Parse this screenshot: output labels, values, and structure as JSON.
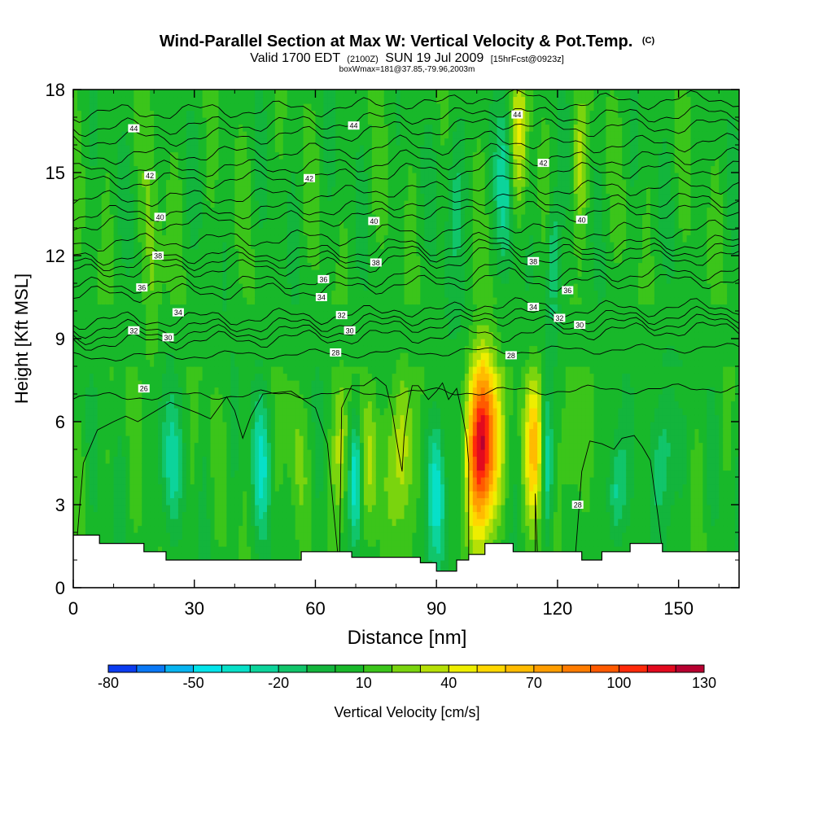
{
  "chart_data": {
    "type": "heatmap",
    "title": "Wind-Parallel Section at Max W: Vertical Velocity & Pot.Temp.",
    "title_mark": "(C)",
    "subtitle_parts": [
      "Valid 1700 EDT",
      "(2100Z)",
      "SUN 19 Jul 2009",
      "[15hrFcst@0923z]"
    ],
    "subtitle2": "boxWmax=181@37.85,-79.96,2003m",
    "xlabel": "Distance [nm]",
    "ylabel": "Height [Kft MSL]",
    "xlim": [
      0,
      165
    ],
    "ylim": [
      0,
      18
    ],
    "x_ticks": [
      0,
      30,
      60,
      90,
      120,
      150
    ],
    "y_ticks": [
      0,
      3,
      6,
      9,
      12,
      15,
      18
    ],
    "grid": false,
    "colorbar": {
      "label": "Vertical Velocity [cm/s]",
      "tick_labels": [
        "-80",
        "-50",
        "-20",
        "10",
        "40",
        "70",
        "100",
        "130"
      ],
      "min": -80,
      "max": 130,
      "step": 10,
      "colors": [
        "#0000d8",
        "#0b3cf0",
        "#0a78f5",
        "#07b4f0",
        "#03e4ea",
        "#07e0c8",
        "#0cd49b",
        "#11c56a",
        "#13b53c",
        "#18b82a",
        "#3bc51a",
        "#7ad40e",
        "#b6e006",
        "#eeee00",
        "#ffd700",
        "#ffbb00",
        "#ff9d00",
        "#ff7c00",
        "#ff5a00",
        "#ff2a0a",
        "#e20a1e",
        "#b70030"
      ]
    },
    "terrain_kft": [
      [
        0,
        1.9
      ],
      [
        6.5,
        1.6
      ],
      [
        17.5,
        1.3
      ],
      [
        23,
        1.0
      ],
      [
        56.5,
        1.3
      ],
      [
        62,
        1.3
      ],
      [
        69,
        1.1
      ],
      [
        75,
        1.1
      ],
      [
        79.5,
        1.1
      ],
      [
        84,
        1.1
      ],
      [
        86,
        0.9
      ],
      [
        90,
        0.6
      ],
      [
        93,
        0.6
      ],
      [
        95,
        1.0
      ],
      [
        98,
        1.2
      ],
      [
        102,
        1.6
      ],
      [
        109,
        1.3
      ],
      [
        120,
        1.3
      ],
      [
        126,
        1.0
      ],
      [
        131,
        1.3
      ],
      [
        138,
        1.6
      ],
      [
        146,
        1.3
      ],
      [
        165,
        1.3
      ]
    ],
    "updraft_cores": [
      {
        "x": 101.5,
        "z": 5.2,
        "peak_cms": 125,
        "width_nm": 3.6,
        "depth_kft": 3.0
      },
      {
        "x": 114.5,
        "z": 5.3,
        "peak_cms": 55,
        "width_nm": 2.4,
        "depth_kft": 2.7
      },
      {
        "x": 81.5,
        "z": 5.0,
        "peak_cms": 42,
        "width_nm": 2.4,
        "depth_kft": 2.8
      },
      {
        "x": 66.5,
        "z": 4.8,
        "peak_cms": 34,
        "width_nm": 2.0,
        "depth_kft": 2.6
      },
      {
        "x": 73.8,
        "z": 4.5,
        "peak_cms": 28,
        "width_nm": 2.0,
        "depth_kft": 2.5
      },
      {
        "x": 110.5,
        "z": 16.4,
        "peak_cms": 30,
        "width_nm": 2.2,
        "depth_kft": 2.6
      },
      {
        "x": 125.5,
        "z": 15.5,
        "peak_cms": 26,
        "width_nm": 2.0,
        "depth_kft": 2.3
      },
      {
        "x": 123.5,
        "z": 5.0,
        "peak_cms": 24,
        "width_nm": 2.0,
        "depth_kft": 2.4
      },
      {
        "x": 54.5,
        "z": 5.0,
        "peak_cms": 14,
        "width_nm": 2.0,
        "depth_kft": 2.4
      },
      {
        "x": 19.5,
        "z": 11.0,
        "peak_cms": 18,
        "width_nm": 2.4,
        "depth_kft": 4.0
      }
    ],
    "downdraft_cores": [
      {
        "x": 70.0,
        "z": 4.0,
        "peak_cms": -50,
        "width_nm": 1.6,
        "depth_kft": 2.2
      },
      {
        "x": 90.5,
        "z": 3.5,
        "peak_cms": -45,
        "width_nm": 2.2,
        "depth_kft": 2.6
      },
      {
        "x": 46.5,
        "z": 4.5,
        "peak_cms": -30,
        "width_nm": 2.6,
        "depth_kft": 2.6
      },
      {
        "x": 23.5,
        "z": 4.5,
        "peak_cms": -30,
        "width_nm": 2.6,
        "depth_kft": 2.5
      },
      {
        "x": 117.5,
        "z": 4.5,
        "peak_cms": -35,
        "width_nm": 1.4,
        "depth_kft": 2.6
      },
      {
        "x": 134.5,
        "z": 3.5,
        "peak_cms": -38,
        "width_nm": 2.0,
        "depth_kft": 2.0
      },
      {
        "x": 147.5,
        "z": 5.0,
        "peak_cms": -28,
        "width_nm": 2.6,
        "depth_kft": 2.6
      },
      {
        "x": 107.0,
        "z": 14.5,
        "peak_cms": -28,
        "width_nm": 2.0,
        "depth_kft": 3.0
      },
      {
        "x": 94.5,
        "z": 14.0,
        "peak_cms": -22,
        "width_nm": 2.4,
        "depth_kft": 3.0
      },
      {
        "x": 119.0,
        "z": 12.0,
        "peak_cms": -30,
        "width_nm": 1.6,
        "depth_kft": 2.5
      }
    ],
    "isentropes": [
      {
        "label": "26",
        "base_kft": 7.05,
        "x_label": 17.5,
        "y_label": 7.2
      },
      {
        "label": "28",
        "base_kft": 8.5,
        "x_label": 65,
        "y_label": 8.5
      },
      {
        "label": "30",
        "base_kft": 9.1,
        "x_label": 23.5,
        "y_label": 9.05
      },
      {
        "label": "32",
        "base_kft": 9.35,
        "x_label": 15,
        "y_label": 9.3
      },
      {
        "label": "34",
        "base_kft": 9.9,
        "x_label": 26,
        "y_label": 9.95
      },
      {
        "label": "36",
        "base_kft": 10.85,
        "x_label": 17,
        "y_label": 10.85
      },
      {
        "label": "38",
        "base_kft": 11.95,
        "x_label": 21,
        "y_label": 12.0
      },
      {
        "label": "40",
        "base_kft": 13.4,
        "x_label": 21.5,
        "y_label": 13.4
      },
      {
        "label": "42",
        "base_kft": 14.9,
        "x_label": 19,
        "y_label": 14.9
      },
      {
        "label": "44",
        "base_kft": 16.45,
        "x_label": 15,
        "y_label": 16.6
      }
    ],
    "extra_contour_labels": [
      {
        "label": "28",
        "x": 108.5,
        "y": 8.4
      },
      {
        "label": "28",
        "x": 125,
        "y": 3.0
      },
      {
        "label": "30",
        "x": 68.5,
        "y": 9.3
      },
      {
        "label": "30",
        "x": 125.5,
        "y": 9.5
      },
      {
        "label": "32",
        "x": 66.5,
        "y": 9.85
      },
      {
        "label": "32",
        "x": 120.5,
        "y": 9.75
      },
      {
        "label": "34",
        "x": 61.5,
        "y": 10.5
      },
      {
        "label": "34",
        "x": 114,
        "y": 10.15
      },
      {
        "label": "36",
        "x": 62,
        "y": 11.15
      },
      {
        "label": "36",
        "x": 122.5,
        "y": 10.75
      },
      {
        "label": "38",
        "x": 75,
        "y": 11.75
      },
      {
        "label": "38",
        "x": 114,
        "y": 11.8
      },
      {
        "label": "40",
        "x": 74.5,
        "y": 13.25
      },
      {
        "label": "40",
        "x": 126,
        "y": 13.3
      },
      {
        "label": "42",
        "x": 58.5,
        "y": 14.8
      },
      {
        "label": "42",
        "x": 116.5,
        "y": 15.35
      },
      {
        "label": "44",
        "x": 69.5,
        "y": 16.7
      },
      {
        "label": "44",
        "x": 110,
        "y": 17.1
      }
    ],
    "boundary_layer_contour_kft": [
      [
        1,
        1.9
      ],
      [
        2.5,
        4.5
      ],
      [
        6,
        5.7
      ],
      [
        10,
        6.0
      ],
      [
        13,
        6.2
      ],
      [
        16,
        6.0
      ],
      [
        24,
        6.7
      ],
      [
        31,
        6.3
      ],
      [
        34,
        6.1
      ],
      [
        38,
        6.9
      ],
      [
        40,
        6.4
      ],
      [
        42,
        5.4
      ],
      [
        44,
        6.2
      ],
      [
        47,
        7.0
      ],
      [
        54,
        7.1
      ],
      [
        56,
        6.9
      ],
      [
        60,
        6.5
      ],
      [
        63,
        5.2
      ],
      [
        64.5,
        2.8
      ],
      [
        65.5,
        1.3
      ]
    ],
    "convective_contour_kft": [
      [
        [
          66,
          1.3
        ],
        [
          66.5,
          6.5
        ],
        [
          69,
          7.3
        ],
        [
          72,
          7.3
        ],
        [
          75,
          7.6
        ],
        [
          77.5,
          7.3
        ],
        [
          79,
          6.4
        ],
        [
          80.5,
          5.0
        ],
        [
          81.5,
          4.2
        ],
        [
          82,
          5.5
        ],
        [
          83,
          6.6
        ],
        [
          84,
          7.3
        ],
        [
          85.5,
          7.3
        ],
        [
          88,
          6.8
        ],
        [
          90,
          7.1
        ],
        [
          91.5,
          7.4
        ],
        [
          93,
          6.8
        ],
        [
          95,
          7.2
        ],
        [
          96.5,
          6.2
        ],
        [
          97.5,
          5.4
        ],
        [
          98,
          4.5
        ],
        [
          98,
          1.2
        ]
      ],
      [
        [
          114.5,
          1.3
        ],
        [
          114.5,
          3.4
        ],
        [
          115,
          1.3
        ]
      ],
      [
        [
          124.5,
          1.3
        ],
        [
          126,
          4.2
        ],
        [
          128,
          5.3
        ],
        [
          131,
          5.2
        ],
        [
          134,
          5.0
        ],
        [
          136,
          5.4
        ],
        [
          139,
          5.5
        ],
        [
          141,
          5.1
        ],
        [
          143,
          4.6
        ],
        [
          145,
          2.5
        ],
        [
          146,
          1.3
        ]
      ]
    ]
  }
}
